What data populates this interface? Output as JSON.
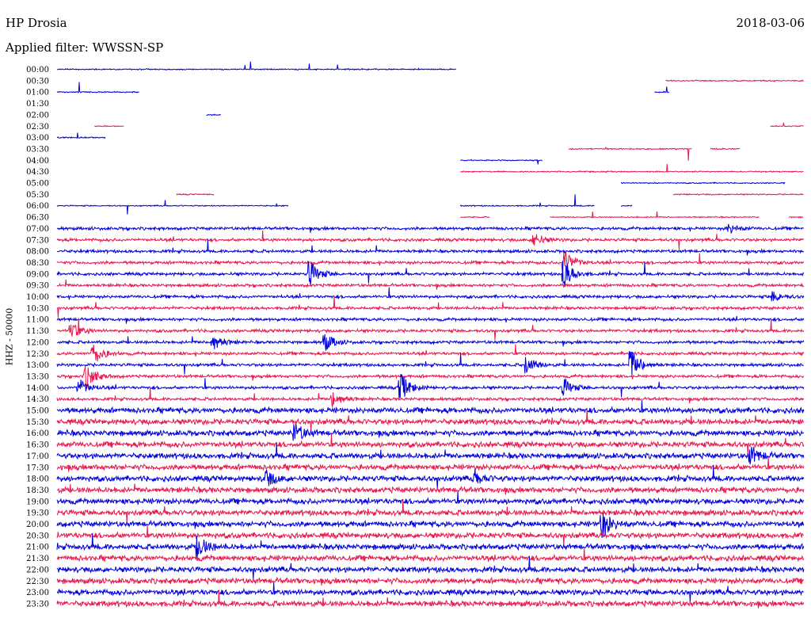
{
  "header": {
    "station": "HP Drosia",
    "date": "2018-03-06",
    "filter_text": "Applied filter: WWSSN-SP"
  },
  "chart_data": {
    "type": "helicorder",
    "channel_label": "HHZ - 50000",
    "rows": [
      "00:00",
      "00:30",
      "01:00",
      "01:30",
      "02:00",
      "02:30",
      "03:00",
      "03:30",
      "04:00",
      "04:30",
      "05:00",
      "05:30",
      "06:00",
      "06:30",
      "07:00",
      "07:30",
      "08:00",
      "08:30",
      "09:00",
      "09:30",
      "10:00",
      "10:30",
      "11:00",
      "11:30",
      "12:00",
      "12:30",
      "13:00",
      "13:30",
      "14:00",
      "14:30",
      "15:00",
      "15:30",
      "16:00",
      "16:30",
      "17:00",
      "17:30",
      "18:00",
      "18:30",
      "19:00",
      "19:30",
      "20:00",
      "20:30",
      "21:00",
      "21:30",
      "22:00",
      "22:30",
      "23:00",
      "23:30"
    ],
    "colors": [
      "#0000dd",
      "#e8174e"
    ],
    "events": [
      {
        "row": "07:00",
        "frac": 0.9,
        "amp": 6
      },
      {
        "row": "07:30",
        "frac": 0.64,
        "amp": 8
      },
      {
        "row": "08:30",
        "frac": 0.68,
        "amp": 16
      },
      {
        "row": "09:00",
        "frac": 0.34,
        "amp": 14
      },
      {
        "row": "09:00",
        "frac": 0.68,
        "amp": 16
      },
      {
        "row": "10:00",
        "frac": 0.96,
        "amp": 6
      },
      {
        "row": "11:30",
        "frac": 0.02,
        "amp": 10
      },
      {
        "row": "12:00",
        "frac": 0.21,
        "amp": 10
      },
      {
        "row": "12:00",
        "frac": 0.36,
        "amp": 10
      },
      {
        "row": "12:30",
        "frac": 0.05,
        "amp": 12
      },
      {
        "row": "13:00",
        "frac": 0.63,
        "amp": 10
      },
      {
        "row": "13:00",
        "frac": 0.77,
        "amp": 18
      },
      {
        "row": "13:30",
        "frac": 0.04,
        "amp": 14
      },
      {
        "row": "14:00",
        "frac": 0.03,
        "amp": 10
      },
      {
        "row": "14:00",
        "frac": 0.46,
        "amp": 18
      },
      {
        "row": "14:00",
        "frac": 0.68,
        "amp": 10
      },
      {
        "row": "14:30",
        "frac": 0.37,
        "amp": 10
      },
      {
        "row": "16:00",
        "frac": 0.32,
        "amp": 10
      },
      {
        "row": "17:00",
        "frac": 0.93,
        "amp": 10
      },
      {
        "row": "18:00",
        "frac": 0.28,
        "amp": 10
      },
      {
        "row": "18:00",
        "frac": 0.56,
        "amp": 8
      },
      {
        "row": "20:00",
        "frac": 0.73,
        "amp": 16
      },
      {
        "row": "21:00",
        "frac": 0.19,
        "amp": 12
      }
    ],
    "grid": false
  }
}
